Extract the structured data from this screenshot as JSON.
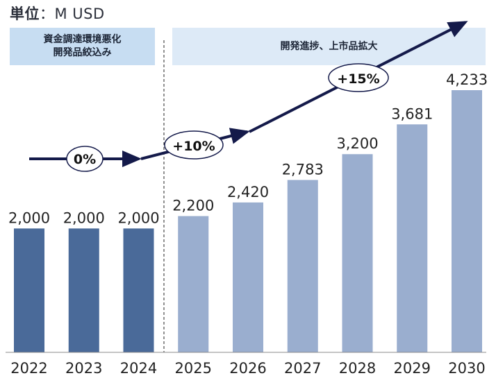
{
  "unit": {
    "label": "単位",
    "value": "：M USD"
  },
  "phases": [
    {
      "label": "資金調達環境悪化\n開発品絞込み"
    },
    {
      "label": "開発進捗、上市品拡大"
    }
  ],
  "growth_labels": [
    "0%",
    "+10%",
    "+15%"
  ],
  "colors": {
    "early_bar": "#4a6a99",
    "later_bar": "#9aaecf",
    "arrow": "#141a4a",
    "text": "#222222"
  },
  "chart_data": {
    "type": "bar",
    "categories": [
      "2022",
      "2023",
      "2024",
      "2025",
      "2026",
      "2027",
      "2028",
      "2029",
      "2030"
    ],
    "values": [
      2000,
      2000,
      2000,
      2200,
      2420,
      2783,
      3200,
      3681,
      4233
    ],
    "value_labels": [
      "2,000",
      "2,000",
      "2,000",
      "2,200",
      "2,420",
      "2,783",
      "3,200",
      "3,681",
      "4,233"
    ],
    "ylim": [
      0,
      4233
    ],
    "grid": false,
    "legend": "none"
  }
}
